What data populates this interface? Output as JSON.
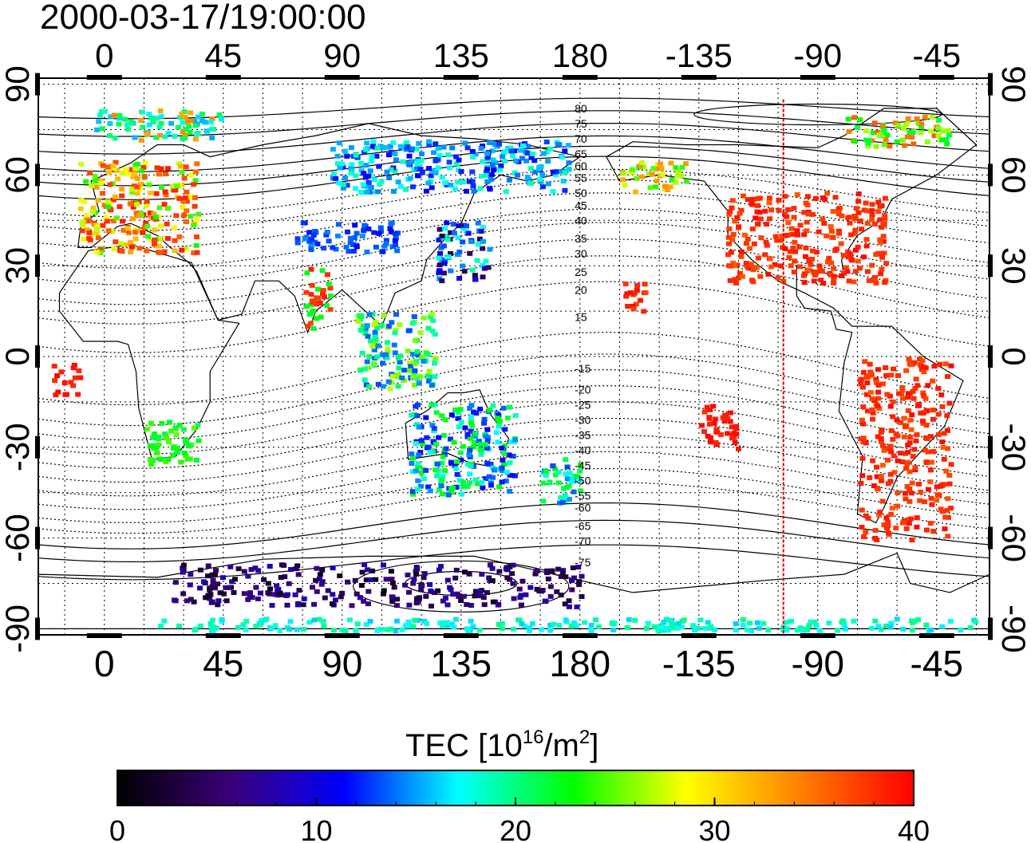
{
  "title": "2000-03-17/19:00:00",
  "map": {
    "lon_ticks": [
      "0",
      "45",
      "90",
      "135",
      "180",
      "-135",
      "-90",
      "-45"
    ],
    "lat_ticks": [
      "90",
      "60",
      "30",
      "0",
      "-30",
      "-60",
      "-90"
    ],
    "lon_tick_values": [
      0,
      45,
      90,
      135,
      180,
      225,
      270,
      315
    ],
    "lat_tick_values": [
      90,
      60,
      30,
      0,
      -30,
      -60,
      -90
    ],
    "lon_range": [
      -25,
      335
    ],
    "lat_range": [
      -92,
      92
    ],
    "grid_lon_step": 15,
    "grid_lat_step": 15,
    "terminator_lon": 257,
    "contour_labels": [
      {
        "text": "80",
        "lat": 82
      },
      {
        "text": "75",
        "lat": 77
      },
      {
        "text": "70",
        "lat": 72
      },
      {
        "text": "65",
        "lat": 67
      },
      {
        "text": "60",
        "lat": 63
      },
      {
        "text": "55",
        "lat": 59
      },
      {
        "text": "50",
        "lat": 54
      },
      {
        "text": "45",
        "lat": 50
      },
      {
        "text": "40",
        "lat": 45
      },
      {
        "text": "35",
        "lat": 39
      },
      {
        "text": "30",
        "lat": 34
      },
      {
        "text": "25",
        "lat": 28
      },
      {
        "text": "20",
        "lat": 22
      },
      {
        "text": "15",
        "lat": 13
      },
      {
        "text": "-15",
        "lat": -4
      },
      {
        "text": "-20",
        "lat": -11
      },
      {
        "text": "-25",
        "lat": -16
      },
      {
        "text": "-30",
        "lat": -21
      },
      {
        "text": "-35",
        "lat": -26
      },
      {
        "text": "-40",
        "lat": -31
      },
      {
        "text": "-45",
        "lat": -36
      },
      {
        "text": "-50",
        "lat": -41
      },
      {
        "text": "-55",
        "lat": -46
      },
      {
        "text": "-60",
        "lat": -50
      },
      {
        "text": "-65",
        "lat": -56
      },
      {
        "text": "-70",
        "lat": -61
      },
      {
        "text": "-75",
        "lat": -68
      }
    ],
    "tec_regions": [
      {
        "name": "europe",
        "lon": [
          -10,
          35
        ],
        "lat": [
          35,
          65
        ],
        "values": [
          38,
          36,
          32,
          28,
          24
        ]
      },
      {
        "name": "usa",
        "lon": [
          235,
          295
        ],
        "lat": [
          25,
          55
        ],
        "values": [
          39,
          38,
          38,
          37
        ]
      },
      {
        "name": "south-america",
        "lon": [
          285,
          320
        ],
        "lat": [
          -60,
          0
        ],
        "values": [
          38,
          37,
          39
        ]
      },
      {
        "name": "japan",
        "lon": [
          125,
          145
        ],
        "lat": [
          25,
          45
        ],
        "values": [
          18,
          14,
          10,
          4
        ]
      },
      {
        "name": "australia",
        "lon": [
          115,
          155
        ],
        "lat": [
          -45,
          -15
        ],
        "values": [
          22,
          18,
          14,
          12
        ]
      },
      {
        "name": "new-zealand",
        "lon": [
          165,
          180
        ],
        "lat": [
          -48,
          -33
        ],
        "values": [
          18,
          22,
          14
        ]
      },
      {
        "name": "africa-south",
        "lon": [
          15,
          35
        ],
        "lat": [
          -35,
          -20
        ],
        "values": [
          24,
          22
        ]
      },
      {
        "name": "antarctica",
        "lon": [
          25,
          180
        ],
        "lat": [
          -82,
          -68
        ],
        "values": [
          4,
          6,
          2,
          8
        ]
      },
      {
        "name": "south-pole-band",
        "lon": [
          20,
          330
        ],
        "lat": [
          -90,
          -86
        ],
        "values": [
          17,
          19
        ]
      },
      {
        "name": "hawaii",
        "lon": [
          195,
          205
        ],
        "lat": [
          15,
          25
        ],
        "values": [
          38,
          39
        ]
      },
      {
        "name": "alaska",
        "lon": [
          195,
          220
        ],
        "lat": [
          55,
          65
        ],
        "values": [
          24,
          27,
          33
        ]
      },
      {
        "name": "siberia",
        "lon": [
          85,
          175
        ],
        "lat": [
          55,
          72
        ],
        "values": [
          15,
          12,
          18
        ]
      },
      {
        "name": "asia-mid",
        "lon": [
          70,
          110
        ],
        "lat": [
          35,
          45
        ],
        "values": [
          13,
          12,
          14
        ]
      },
      {
        "name": "arctic",
        "lon": [
          -5,
          45
        ],
        "lat": [
          72,
          82
        ],
        "values": [
          33,
          16,
          21,
          19
        ]
      },
      {
        "name": "greenland-arctic",
        "lon": [
          280,
          320
        ],
        "lat": [
          70,
          80
        ],
        "values": [
          26,
          22,
          35
        ]
      },
      {
        "name": "sea-asia",
        "lon": [
          95,
          125
        ],
        "lat": [
          -10,
          15
        ],
        "values": [
          20,
          14,
          26
        ]
      },
      {
        "name": "india",
        "lon": [
          75,
          85
        ],
        "lat": [
          10,
          30
        ],
        "values": [
          38,
          22
        ]
      },
      {
        "name": "east-pacific",
        "lon": [
          225,
          240
        ],
        "lat": [
          -30,
          -15
        ],
        "values": [
          39
        ]
      },
      {
        "name": "west-africa",
        "lon": [
          -20,
          -10
        ],
        "lat": [
          -12,
          -2
        ],
        "values": [
          39
        ]
      }
    ]
  },
  "colorbar": {
    "title_main": "TEC  [10",
    "title_sup1": "16",
    "title_mid": "/m",
    "title_sup2": "2",
    "title_end": "]",
    "tick_labels": [
      "0",
      "10",
      "20",
      "30",
      "40"
    ],
    "range": [
      0,
      40
    ],
    "colors": [
      "#000000",
      "#3a0078",
      "#0000ff",
      "#00ffff",
      "#00ff00",
      "#ffff00",
      "#ff8000",
      "#ff0000"
    ]
  }
}
